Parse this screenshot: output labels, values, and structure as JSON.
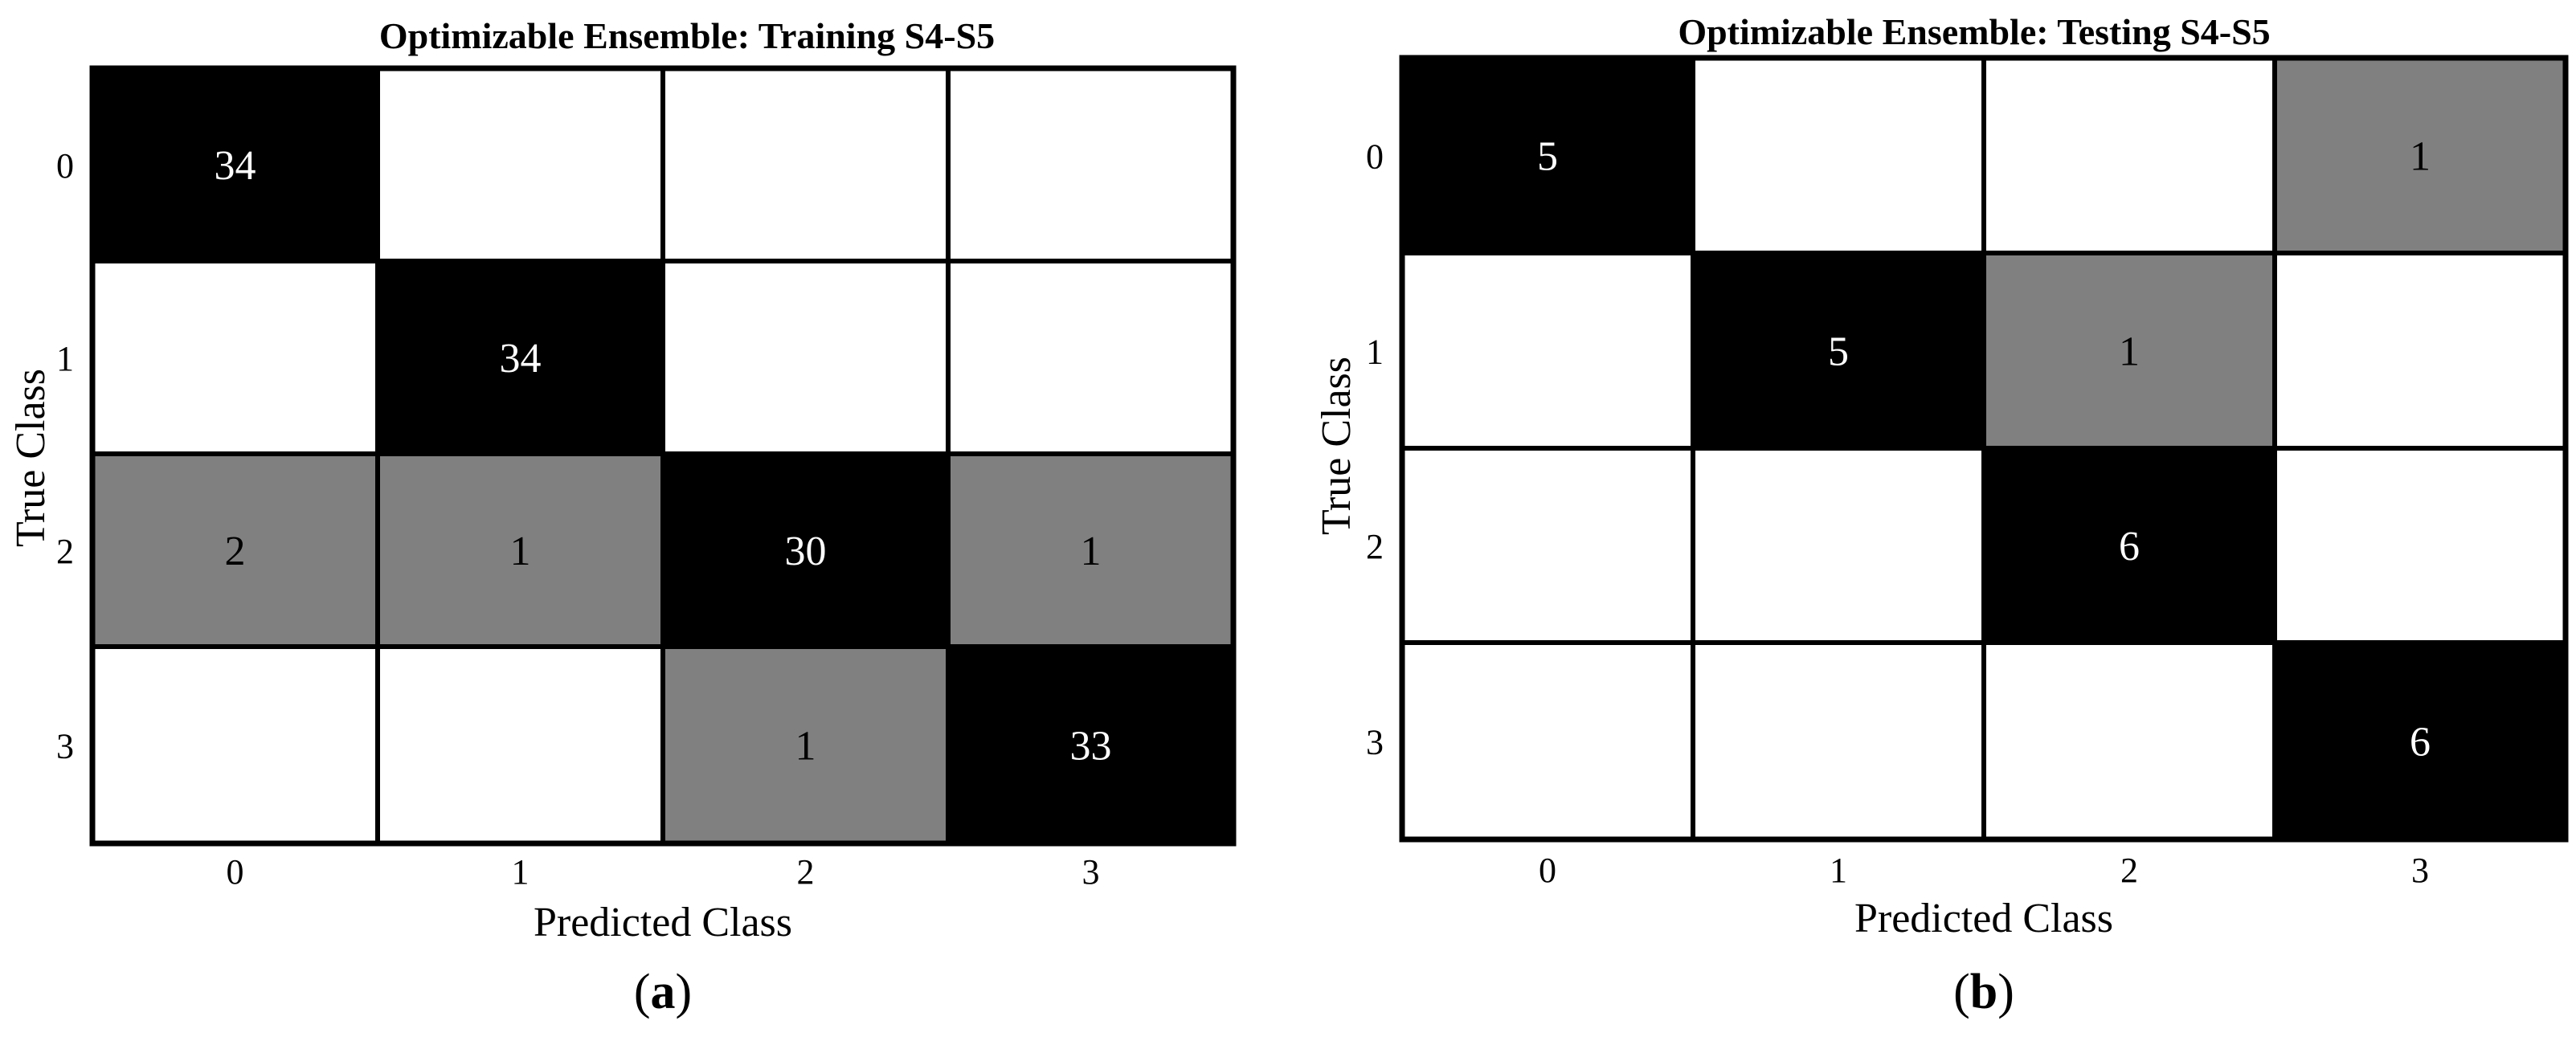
{
  "chart_data": [
    {
      "type": "heatmap",
      "title": "Optimizable Ensemble: Training S4-S5",
      "xlabel": "Predicted Class",
      "ylabel": "True Class",
      "x_categories": [
        "0",
        "1",
        "2",
        "3"
      ],
      "y_categories": [
        "0",
        "1",
        "2",
        "3"
      ],
      "matrix": [
        [
          34,
          null,
          null,
          null
        ],
        [
          null,
          34,
          null,
          null
        ],
        [
          2,
          1,
          30,
          1
        ],
        [
          null,
          null,
          1,
          33
        ]
      ],
      "colors": {
        "diagonal": "#000000",
        "off_diagonal": "#808080",
        "empty": "#ffffff",
        "grid": "#000000"
      },
      "panel_label": "(a)"
    },
    {
      "type": "heatmap",
      "title": "Optimizable Ensemble: Testing S4-S5",
      "xlabel": "Predicted Class",
      "ylabel": "True Class",
      "x_categories": [
        "0",
        "1",
        "2",
        "3"
      ],
      "y_categories": [
        "0",
        "1",
        "2",
        "3"
      ],
      "matrix": [
        [
          5,
          null,
          null,
          1
        ],
        [
          null,
          5,
          1,
          null
        ],
        [
          null,
          null,
          6,
          null
        ],
        [
          null,
          null,
          null,
          6
        ]
      ],
      "colors": {
        "diagonal": "#000000",
        "off_diagonal": "#808080",
        "empty": "#ffffff",
        "grid": "#000000"
      },
      "panel_label": "(b)"
    }
  ]
}
